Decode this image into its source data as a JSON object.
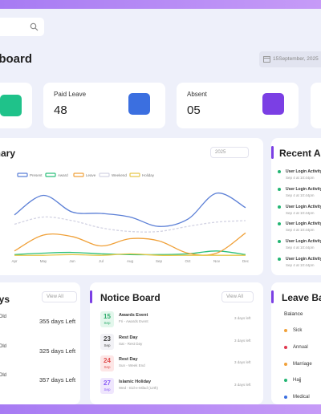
{
  "header": {
    "title": "Dashboard",
    "date": "15September, 2025"
  },
  "stats": [
    {
      "label": "Paid Leave",
      "value": "48"
    },
    {
      "label": "Absent",
      "value": "05"
    }
  ],
  "summary_card": {
    "filter": "2025"
  },
  "chart_data": {
    "type": "line",
    "title": "Attendance Summary",
    "categories": [
      "Apr",
      "May",
      "Jun",
      "Jul",
      "Aug",
      "Sep",
      "Oct",
      "Nov",
      "Dec"
    ],
    "ylim": [
      0,
      100
    ],
    "legend": "top",
    "series": [
      {
        "name": "Present",
        "color": "#5b7fd6",
        "values": [
          58,
          85,
          62,
          60,
          55,
          42,
          52,
          88,
          68
        ]
      },
      {
        "name": "Award",
        "color": "#2bbf7a",
        "values": [
          3,
          5,
          6,
          4,
          3,
          3,
          4,
          8,
          3
        ]
      },
      {
        "name": "Leave",
        "color": "#f0a13a",
        "values": [
          8,
          30,
          28,
          15,
          25,
          22,
          5,
          5,
          33
        ]
      },
      {
        "name": "Weekend",
        "color": "#d3d3e3",
        "style": "dashed",
        "values": [
          45,
          55,
          50,
          40,
          35,
          35,
          42,
          48,
          50
        ]
      },
      {
        "name": "Holiday",
        "color": "#e6c84a",
        "values": [
          2,
          2,
          3,
          2,
          4,
          2,
          2,
          2,
          2
        ]
      }
    ]
  },
  "recent_activity": {
    "title": "Recent Activity",
    "items": [
      {
        "title": "User Login Activity",
        "time": "Sep 4 at 10:44pm"
      },
      {
        "title": "User Login Activity",
        "time": "Sep 4 at 10:44pm"
      },
      {
        "title": "User Login Activity",
        "time": "Sep 4 at 10:44pm"
      },
      {
        "title": "User Login Activity",
        "time": "Sep 4 at 10:44pm"
      },
      {
        "title": "User Login Activity",
        "time": "Sep 4 at 10:44pm"
      },
      {
        "title": "User Login Activity",
        "time": "Sep 4 at 10:44pm"
      }
    ]
  },
  "holidays": {
    "title": "Upcoming Holidays",
    "filter": "View All",
    "items": [
      {
        "name": "Old",
        "left": "355 days Left"
      },
      {
        "name": "Old",
        "left": "325 days Left"
      },
      {
        "name": "Old",
        "left": "357 days Left"
      }
    ]
  },
  "notice_board": {
    "title": "Notice Board",
    "filter": "View All",
    "items": [
      {
        "day": "15",
        "month": "Sep",
        "title": "Awards Event",
        "subtitle": "Fri - Awards Event",
        "due": "3 days left"
      },
      {
        "day": "23",
        "month": "Sep",
        "title": "Rest Day",
        "subtitle": "Sat - Rest Day",
        "due": "3 days left"
      },
      {
        "day": "24",
        "month": "Sep",
        "title": "Rest Day",
        "subtitle": "Sun - Week End",
        "due": "3 days left"
      },
      {
        "day": "27",
        "month": "Sep",
        "title": "Islamic Holiday",
        "subtitle": "Wed - Eid-e-Milad (12th)",
        "due": "3 days left"
      }
    ]
  },
  "leave_balance": {
    "title": "Leave Balance",
    "header": "Balance",
    "items": [
      "Sick",
      "Annual",
      "Marriage",
      "Hajj",
      "Medical"
    ]
  }
}
